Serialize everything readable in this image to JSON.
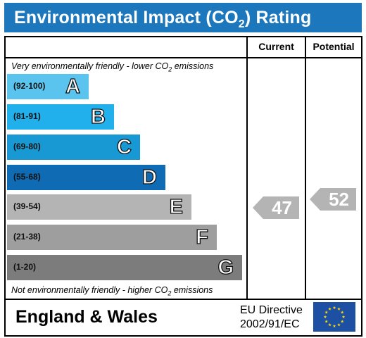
{
  "title": {
    "prefix": "Environmental Impact (CO",
    "sub": "2",
    "suffix": ") Rating"
  },
  "columns": {
    "current": "Current",
    "potential": "Potential"
  },
  "top_note": {
    "prefix": "Very environmentally friendly - lower CO",
    "sub": "2",
    "suffix": " emissions"
  },
  "bottom_note": {
    "prefix": "Not environmentally friendly - higher CO",
    "sub": "2",
    "suffix": " emissions"
  },
  "bands": [
    {
      "range": "(92-100)",
      "letter": "A",
      "color": "#5bc4ee"
    },
    {
      "range": "(81-91)",
      "letter": "B",
      "color": "#22b0ec"
    },
    {
      "range": "(69-80)",
      "letter": "C",
      "color": "#1899d4"
    },
    {
      "range": "(55-68)",
      "letter": "D",
      "color": "#0f6cb4"
    },
    {
      "range": "(39-54)",
      "letter": "E",
      "color": "#b4b4b4"
    },
    {
      "range": "(21-38)",
      "letter": "F",
      "color": "#9e9e9e"
    },
    {
      "range": "(1-20)",
      "letter": "G",
      "color": "#7c7c7c"
    }
  ],
  "ratings": {
    "current": {
      "value": "47",
      "color": "#b4b4b4"
    },
    "potential": {
      "value": "52",
      "color": "#b4b4b4"
    }
  },
  "footer": {
    "country": "England & Wales",
    "directive_line1": "EU Directive",
    "directive_line2": "2002/91/EC"
  }
}
